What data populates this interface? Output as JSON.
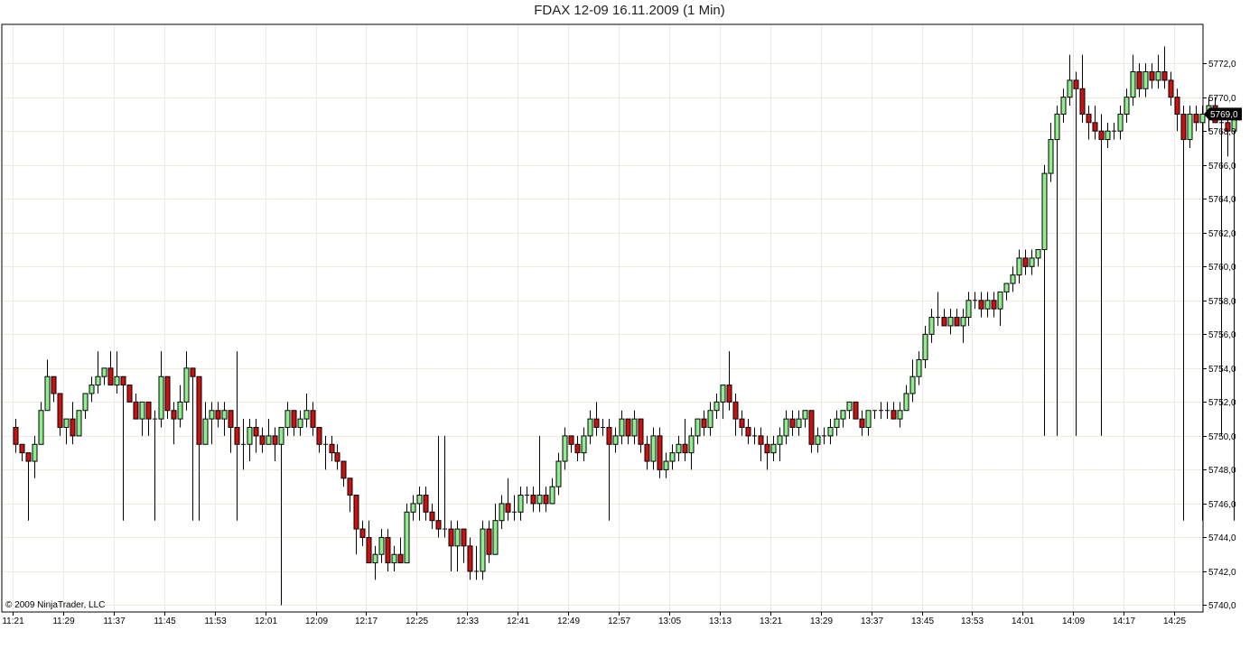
{
  "chart_data": {
    "type": "candlestick",
    "title": "FDAX 12-09  16.11.2009 (1 Min)",
    "copyright": "© 2009 NinjaTrader, LLC",
    "xlabel": "",
    "ylabel": "",
    "ylim": [
      5739.6,
      5774.3
    ],
    "y_ticks": [
      5740,
      5742,
      5744,
      5746,
      5748,
      5750,
      5752,
      5754,
      5756,
      5758,
      5760,
      5762,
      5764,
      5766,
      5768,
      5770,
      5772
    ],
    "y_tick_labels": [
      "5740,0",
      "5742,0",
      "5744,0",
      "5746,0",
      "5748,0",
      "5750,0",
      "5752,0",
      "5754,0",
      "5756,0",
      "5758,0",
      "5760,0",
      "5762,0",
      "5764,0",
      "5766,0",
      "5768,0",
      "5770,0",
      "5772,0"
    ],
    "x_tick_labels": [
      "11:21",
      "11:29",
      "11:37",
      "11:45",
      "11:53",
      "12:01",
      "12:09",
      "12:17",
      "12:25",
      "12:33",
      "12:41",
      "12:49",
      "12:57",
      "13:05",
      "13:13",
      "13:21",
      "13:29",
      "13:37",
      "13:45",
      "13:53",
      "14:01",
      "14:09",
      "14:17",
      "14:25"
    ],
    "x_start": "11:21",
    "interval_minutes": 1,
    "last_price": 5769.0,
    "last_price_label": "5769,0",
    "grid": true,
    "up_color": "#90ee90",
    "down_color": "#cc1111",
    "candles": [
      [
        5750.5,
        5751,
        5749,
        5749.5
      ],
      [
        5749.5,
        5749.5,
        5748.5,
        5749
      ],
      [
        5749,
        5749,
        5745,
        5748.5
      ],
      [
        5748.5,
        5750,
        5747.5,
        5749.5
      ],
      [
        5749.5,
        5752,
        5749.5,
        5751.5
      ],
      [
        5751.5,
        5754.5,
        5751.5,
        5753.5
      ],
      [
        5753.5,
        5753.5,
        5752,
        5752.5
      ],
      [
        5752.5,
        5752.5,
        5750,
        5750.5
      ],
      [
        5750.5,
        5751,
        5749.5,
        5751
      ],
      [
        5751,
        5752,
        5749.5,
        5750
      ],
      [
        5750,
        5751.5,
        5750,
        5751.5
      ],
      [
        5751.5,
        5752.5,
        5751,
        5752.5
      ],
      [
        5752.5,
        5753.5,
        5752,
        5753
      ],
      [
        5753,
        5755,
        5752.5,
        5753.5
      ],
      [
        5753.5,
        5754,
        5753,
        5754
      ],
      [
        5754,
        5755,
        5753,
        5753
      ],
      [
        5753,
        5755,
        5752.5,
        5753.5
      ],
      [
        5753.5,
        5753.5,
        5745,
        5753
      ],
      [
        5753,
        5753,
        5752,
        5752
      ],
      [
        5752,
        5752.5,
        5751,
        5751
      ],
      [
        5751,
        5752,
        5750,
        5752
      ],
      [
        5752,
        5752,
        5750,
        5751
      ],
      [
        5751,
        5751.5,
        5745,
        5751
      ],
      [
        5751,
        5755,
        5750.5,
        5753.5
      ],
      [
        5753.5,
        5753.5,
        5751,
        5751.5
      ],
      [
        5751.5,
        5752,
        5749.5,
        5751
      ],
      [
        5751,
        5753,
        5750.5,
        5752
      ],
      [
        5752,
        5755,
        5751.5,
        5754
      ],
      [
        5754,
        5754,
        5745,
        5753.5
      ],
      [
        5753.5,
        5753.5,
        5745,
        5749.5
      ],
      [
        5749.5,
        5752,
        5749.5,
        5751
      ],
      [
        5751,
        5752,
        5749.5,
        5751.5
      ],
      [
        5751.5,
        5752,
        5750.5,
        5751
      ],
      [
        5751,
        5752,
        5750,
        5751.5
      ],
      [
        5751.5,
        5751.5,
        5749,
        5750.5
      ],
      [
        5750.5,
        5755,
        5745,
        5749.5
      ],
      [
        5749.5,
        5751,
        5748,
        5749.5
      ],
      [
        5749.5,
        5751,
        5748.5,
        5750.5
      ],
      [
        5750.5,
        5751,
        5749,
        5750
      ],
      [
        5750,
        5750.5,
        5749,
        5749.5
      ],
      [
        5749.5,
        5751,
        5749.5,
        5750
      ],
      [
        5750,
        5750.5,
        5748.5,
        5749.5
      ],
      [
        5749.5,
        5750.5,
        5740,
        5750.5
      ],
      [
        5750.5,
        5752,
        5750,
        5751.5
      ],
      [
        5751.5,
        5751.5,
        5750,
        5750.5
      ],
      [
        5750.5,
        5751.5,
        5750,
        5751
      ],
      [
        5751,
        5752.5,
        5750.5,
        5751.5
      ],
      [
        5751.5,
        5752,
        5750,
        5750.5
      ],
      [
        5750.5,
        5750.5,
        5749,
        5749.5
      ],
      [
        5749.5,
        5750,
        5748,
        5749.5
      ],
      [
        5749.5,
        5750,
        5748.5,
        5749
      ],
      [
        5749,
        5749.5,
        5748,
        5748.5
      ],
      [
        5748.5,
        5748.5,
        5747,
        5747.5
      ],
      [
        5747.5,
        5747.5,
        5745.5,
        5746.5
      ],
      [
        5746.5,
        5746.5,
        5743,
        5744.5
      ],
      [
        5744.5,
        5745,
        5743.5,
        5744
      ],
      [
        5744,
        5745,
        5742.5,
        5742.5
      ],
      [
        5742.5,
        5743.5,
        5741.5,
        5743
      ],
      [
        5743,
        5744.5,
        5742.5,
        5744
      ],
      [
        5744,
        5744.5,
        5742,
        5742.5
      ],
      [
        5742.5,
        5743.5,
        5742,
        5743
      ],
      [
        5743,
        5744,
        5742.5,
        5742.5
      ],
      [
        5742.5,
        5746,
        5742.5,
        5745.5
      ],
      [
        5745.5,
        5746.5,
        5745,
        5746
      ],
      [
        5746,
        5747,
        5745,
        5746.5
      ],
      [
        5746.5,
        5747,
        5745,
        5745.5
      ],
      [
        5745.5,
        5746,
        5744.5,
        5745
      ],
      [
        5745,
        5750,
        5744,
        5744.5
      ],
      [
        5744.5,
        5750,
        5744,
        5744.5
      ],
      [
        5744.5,
        5745,
        5742,
        5743.5
      ],
      [
        5743.5,
        5745,
        5742,
        5744.5
      ],
      [
        5744.5,
        5744.5,
        5742.5,
        5743.5
      ],
      [
        5743.5,
        5744,
        5741.5,
        5742
      ],
      [
        5742,
        5743.5,
        5741.5,
        5742
      ],
      [
        5742,
        5745,
        5741.5,
        5744.5
      ],
      [
        5744.5,
        5745,
        5742.5,
        5743
      ],
      [
        5743,
        5746,
        5743,
        5745
      ],
      [
        5745,
        5746.5,
        5744.5,
        5746
      ],
      [
        5746,
        5747.5,
        5745,
        5745.5
      ],
      [
        5745.5,
        5746.5,
        5745,
        5745.5
      ],
      [
        5745.5,
        5747,
        5745,
        5746.5
      ],
      [
        5746.5,
        5747,
        5746,
        5746.5
      ],
      [
        5746.5,
        5747,
        5745.5,
        5746
      ],
      [
        5746,
        5750,
        5745.5,
        5746.5
      ],
      [
        5746.5,
        5747,
        5745.5,
        5746
      ],
      [
        5746,
        5747.5,
        5746,
        5747
      ],
      [
        5747,
        5749,
        5746.5,
        5748.5
      ],
      [
        5748.5,
        5750.5,
        5748,
        5750
      ],
      [
        5750,
        5750,
        5749,
        5749.5
      ],
      [
        5749.5,
        5750,
        5748.5,
        5749
      ],
      [
        5749,
        5750.5,
        5748.5,
        5750
      ],
      [
        5750,
        5751.5,
        5749.5,
        5751
      ],
      [
        5751,
        5752,
        5750,
        5750.5
      ],
      [
        5750.5,
        5751,
        5750,
        5750.5
      ],
      [
        5750.5,
        5751,
        5745,
        5749.5
      ],
      [
        5749.5,
        5750.5,
        5749,
        5750
      ],
      [
        5750,
        5751.5,
        5749.5,
        5751
      ],
      [
        5751,
        5751,
        5749.5,
        5750
      ],
      [
        5750,
        5751.5,
        5749.5,
        5751
      ],
      [
        5751,
        5751,
        5749,
        5749.5
      ],
      [
        5749.5,
        5750,
        5748,
        5748.5
      ],
      [
        5748.5,
        5750.5,
        5748,
        5750
      ],
      [
        5750,
        5750.5,
        5747.5,
        5748
      ],
      [
        5748,
        5749,
        5747.5,
        5748.5
      ],
      [
        5748.5,
        5749.5,
        5748,
        5749
      ],
      [
        5749,
        5750,
        5748.5,
        5749.5
      ],
      [
        5749.5,
        5751,
        5748.5,
        5749
      ],
      [
        5749,
        5750.5,
        5748,
        5750
      ],
      [
        5750,
        5751,
        5749.5,
        5751
      ],
      [
        5751,
        5751.5,
        5750,
        5750.5
      ],
      [
        5750.5,
        5752,
        5750,
        5751.5
      ],
      [
        5751.5,
        5752.5,
        5751,
        5752
      ],
      [
        5752,
        5753,
        5751,
        5753
      ],
      [
        5753,
        5755,
        5751.5,
        5752
      ],
      [
        5752,
        5752.5,
        5750,
        5751
      ],
      [
        5751,
        5751.5,
        5750,
        5750.5
      ],
      [
        5750.5,
        5751,
        5749.5,
        5750
      ],
      [
        5750,
        5750.5,
        5749.5,
        5750
      ],
      [
        5750,
        5750.5,
        5748.5,
        5749.5
      ],
      [
        5749.5,
        5750,
        5748,
        5749
      ],
      [
        5749,
        5750,
        5748.5,
        5749.5
      ],
      [
        5749.5,
        5750.5,
        5748.5,
        5750
      ],
      [
        5750,
        5751.5,
        5749.5,
        5751
      ],
      [
        5751,
        5751.5,
        5750,
        5750.5
      ],
      [
        5750.5,
        5751.5,
        5750,
        5751
      ],
      [
        5751,
        5751.5,
        5750.5,
        5751.5
      ],
      [
        5751.5,
        5751.5,
        5749,
        5749.5
      ],
      [
        5749.5,
        5750.5,
        5749,
        5750
      ],
      [
        5750,
        5750.5,
        5749.5,
        5750
      ],
      [
        5750,
        5751,
        5749.5,
        5750.5
      ],
      [
        5750.5,
        5751.5,
        5750,
        5751
      ],
      [
        5751,
        5751.5,
        5750.5,
        5751.5
      ],
      [
        5751.5,
        5752,
        5751,
        5752
      ],
      [
        5752,
        5752,
        5751,
        5751
      ],
      [
        5751,
        5751.5,
        5750,
        5750.5
      ],
      [
        5750.5,
        5751.5,
        5750,
        5751.5
      ],
      [
        5751.5,
        5751.5,
        5751,
        5751.5
      ],
      [
        5751.5,
        5752,
        5751,
        5751.5
      ],
      [
        5751.5,
        5752,
        5751,
        5751.5
      ],
      [
        5751.5,
        5752,
        5751,
        5751
      ],
      [
        5751,
        5752,
        5750.5,
        5751.5
      ],
      [
        5751.5,
        5753,
        5751.5,
        5752.5
      ],
      [
        5752.5,
        5754.5,
        5752,
        5753.5
      ],
      [
        5753.5,
        5755,
        5753,
        5754.5
      ],
      [
        5754.5,
        5756.5,
        5754,
        5756
      ],
      [
        5756,
        5757.5,
        5755.5,
        5757
      ],
      [
        5757,
        5758.5,
        5756.5,
        5757
      ],
      [
        5757,
        5757.5,
        5756.5,
        5756.5
      ],
      [
        5756.5,
        5757.5,
        5756,
        5757
      ],
      [
        5757,
        5757.5,
        5756.5,
        5756.5
      ],
      [
        5756.5,
        5757.5,
        5755.5,
        5757
      ],
      [
        5757,
        5758.5,
        5756.5,
        5758
      ],
      [
        5758,
        5758.5,
        5757.5,
        5758
      ],
      [
        5758,
        5758.5,
        5757,
        5757.5
      ],
      [
        5757.5,
        5758.5,
        5757,
        5758
      ],
      [
        5758,
        5758.5,
        5757,
        5757.5
      ],
      [
        5757.5,
        5758.5,
        5756.5,
        5758.5
      ],
      [
        5758.5,
        5759,
        5758,
        5759
      ],
      [
        5759,
        5760,
        5758.5,
        5759.5
      ],
      [
        5759.5,
        5761,
        5759,
        5760.5
      ],
      [
        5760.5,
        5761,
        5759.5,
        5760
      ],
      [
        5760,
        5761,
        5759.5,
        5760.5
      ],
      [
        5760.5,
        5761,
        5760,
        5761
      ],
      [
        5761,
        5766,
        5750,
        5765.5
      ],
      [
        5765.5,
        5768.5,
        5765,
        5767.5
      ],
      [
        5767.5,
        5769.5,
        5750,
        5769
      ],
      [
        5769,
        5770.5,
        5768.5,
        5770
      ],
      [
        5770,
        5772.5,
        5769.5,
        5771
      ],
      [
        5771,
        5771.5,
        5750,
        5770.5
      ],
      [
        5770.5,
        5772.5,
        5768.5,
        5769
      ],
      [
        5769,
        5769.5,
        5767.5,
        5768.5
      ],
      [
        5768.5,
        5769.5,
        5767.5,
        5768
      ],
      [
        5768,
        5769,
        5750,
        5767.5
      ],
      [
        5767.5,
        5768.5,
        5767,
        5768
      ],
      [
        5768,
        5768.5,
        5767.5,
        5768
      ],
      [
        5768,
        5769.5,
        5767.5,
        5769
      ],
      [
        5769,
        5770.5,
        5768.5,
        5770
      ],
      [
        5770,
        5772.5,
        5769.5,
        5771.5
      ],
      [
        5771.5,
        5772,
        5770,
        5770.5
      ],
      [
        5770.5,
        5772,
        5770,
        5771.5
      ],
      [
        5771.5,
        5772,
        5770.5,
        5771
      ],
      [
        5771,
        5772.5,
        5770.5,
        5771.5
      ],
      [
        5771.5,
        5773,
        5770.5,
        5771
      ],
      [
        5771,
        5771.5,
        5769.5,
        5770
      ],
      [
        5770,
        5770.5,
        5768,
        5769
      ],
      [
        5769,
        5769.5,
        5745,
        5767.5
      ],
      [
        5767.5,
        5769.5,
        5767,
        5769
      ],
      [
        5769,
        5769.5,
        5768,
        5768.5
      ],
      [
        5768.5,
        5769.5,
        5745,
        5769
      ],
      [
        5769,
        5770,
        5768,
        5769.5
      ],
      [
        5769.5,
        5770,
        5768.5,
        5768.5
      ],
      [
        5768.5,
        5769,
        5750,
        5768.5
      ],
      [
        5768.5,
        5769,
        5766.5,
        5768
      ],
      [
        5768,
        5769,
        5745,
        5769
      ]
    ]
  }
}
